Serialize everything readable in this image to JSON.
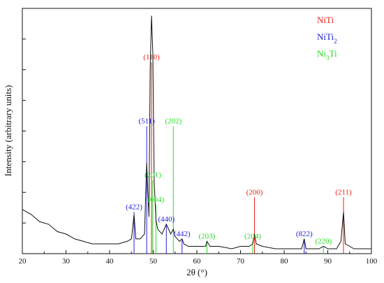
{
  "chart_data": {
    "type": "line",
    "xlabel": "2θ (°)",
    "ylabel": "Intensity (arbitrary units)",
    "xlim": [
      20,
      100
    ],
    "xticks": [
      20,
      30,
      40,
      50,
      60,
      70,
      80,
      90,
      100
    ],
    "yticks_labeled": false,
    "grid": false,
    "legend_position": "top-right",
    "legend": [
      {
        "name": "NiTi",
        "main": "NiTi",
        "sub": "",
        "suffix": "",
        "color": "#e8201a"
      },
      {
        "name": "NiTi2",
        "main": "NiTi",
        "sub": "2",
        "suffix": "",
        "color": "#2222dd"
      },
      {
        "name": "Ni3Ti",
        "main": "Ni",
        "sub": "3",
        "suffix": "Ti",
        "color": "#22dd22"
      }
    ],
    "peaks": [
      {
        "phase": "NiTi",
        "label": "(110)",
        "x": 49.6,
        "height": 0.78
      },
      {
        "phase": "NiTi",
        "label": "(200)",
        "x": 73.2,
        "height": 0.23
      },
      {
        "phase": "NiTi",
        "label": "(211)",
        "x": 93.6,
        "height": 0.23
      },
      {
        "phase": "NiTi2",
        "label": "(511)",
        "x": 48.5,
        "height": 0.52
      },
      {
        "phase": "NiTi2",
        "label": "(422)",
        "x": 45.6,
        "height": 0.17
      },
      {
        "phase": "NiTi2",
        "label": "(440)",
        "x": 53.0,
        "height": 0.12
      },
      {
        "phase": "NiTi2",
        "label": "(442)",
        "x": 56.6,
        "height": 0.06
      },
      {
        "phase": "NiTi2",
        "label": "(822)",
        "x": 84.6,
        "height": 0.06
      },
      {
        "phase": "Ni3Ti",
        "label": "(202)",
        "x": 54.6,
        "height": 0.52
      },
      {
        "phase": "Ni3Ti",
        "label": "(201)",
        "x": 49.9,
        "height": 0.3
      },
      {
        "phase": "Ni3Ti",
        "label": "(004)",
        "x": 50.6,
        "height": 0.2
      },
      {
        "phase": "Ni3Ti",
        "label": "(203)",
        "x": 62.3,
        "height": 0.05
      },
      {
        "phase": "Ni3Ti",
        "label": "(204)",
        "x": 72.8,
        "height": 0.05
      },
      {
        "phase": "Ni3Ti",
        "label": "(220)",
        "x": 89.0,
        "height": 0.03
      }
    ],
    "series": [
      {
        "x": [
          20,
          22,
          24,
          26,
          28,
          30,
          32,
          34,
          36,
          38,
          40,
          42,
          44,
          45,
          45.6,
          46,
          47,
          48,
          48.5,
          49,
          49.3,
          49.6,
          49.9,
          50.2,
          50.6,
          51,
          52,
          53,
          54,
          54.6,
          55,
          56,
          56.6,
          57,
          58,
          60,
          62,
          62.3,
          63,
          65,
          68,
          70,
          72,
          72.8,
          73.2,
          73.6,
          75,
          78,
          80,
          82,
          84,
          84.6,
          85,
          87,
          88,
          89,
          90,
          92,
          93,
          93.6,
          94,
          96,
          98,
          100
        ],
        "y": [
          0.18,
          0.16,
          0.13,
          0.12,
          0.09,
          0.08,
          0.06,
          0.05,
          0.04,
          0.04,
          0.04,
          0.04,
          0.05,
          0.06,
          0.16,
          0.06,
          0.06,
          0.08,
          0.37,
          0.15,
          0.75,
          0.97,
          0.82,
          0.3,
          0.14,
          0.1,
          0.08,
          0.12,
          0.08,
          0.1,
          0.07,
          0.05,
          0.06,
          0.04,
          0.03,
          0.03,
          0.03,
          0.05,
          0.03,
          0.03,
          0.02,
          0.03,
          0.03,
          0.04,
          0.08,
          0.04,
          0.03,
          0.02,
          0.02,
          0.02,
          0.02,
          0.06,
          0.02,
          0.02,
          0.02,
          0.03,
          0.02,
          0.02,
          0.05,
          0.17,
          0.04,
          0.02,
          0.02,
          0.02
        ]
      }
    ]
  }
}
